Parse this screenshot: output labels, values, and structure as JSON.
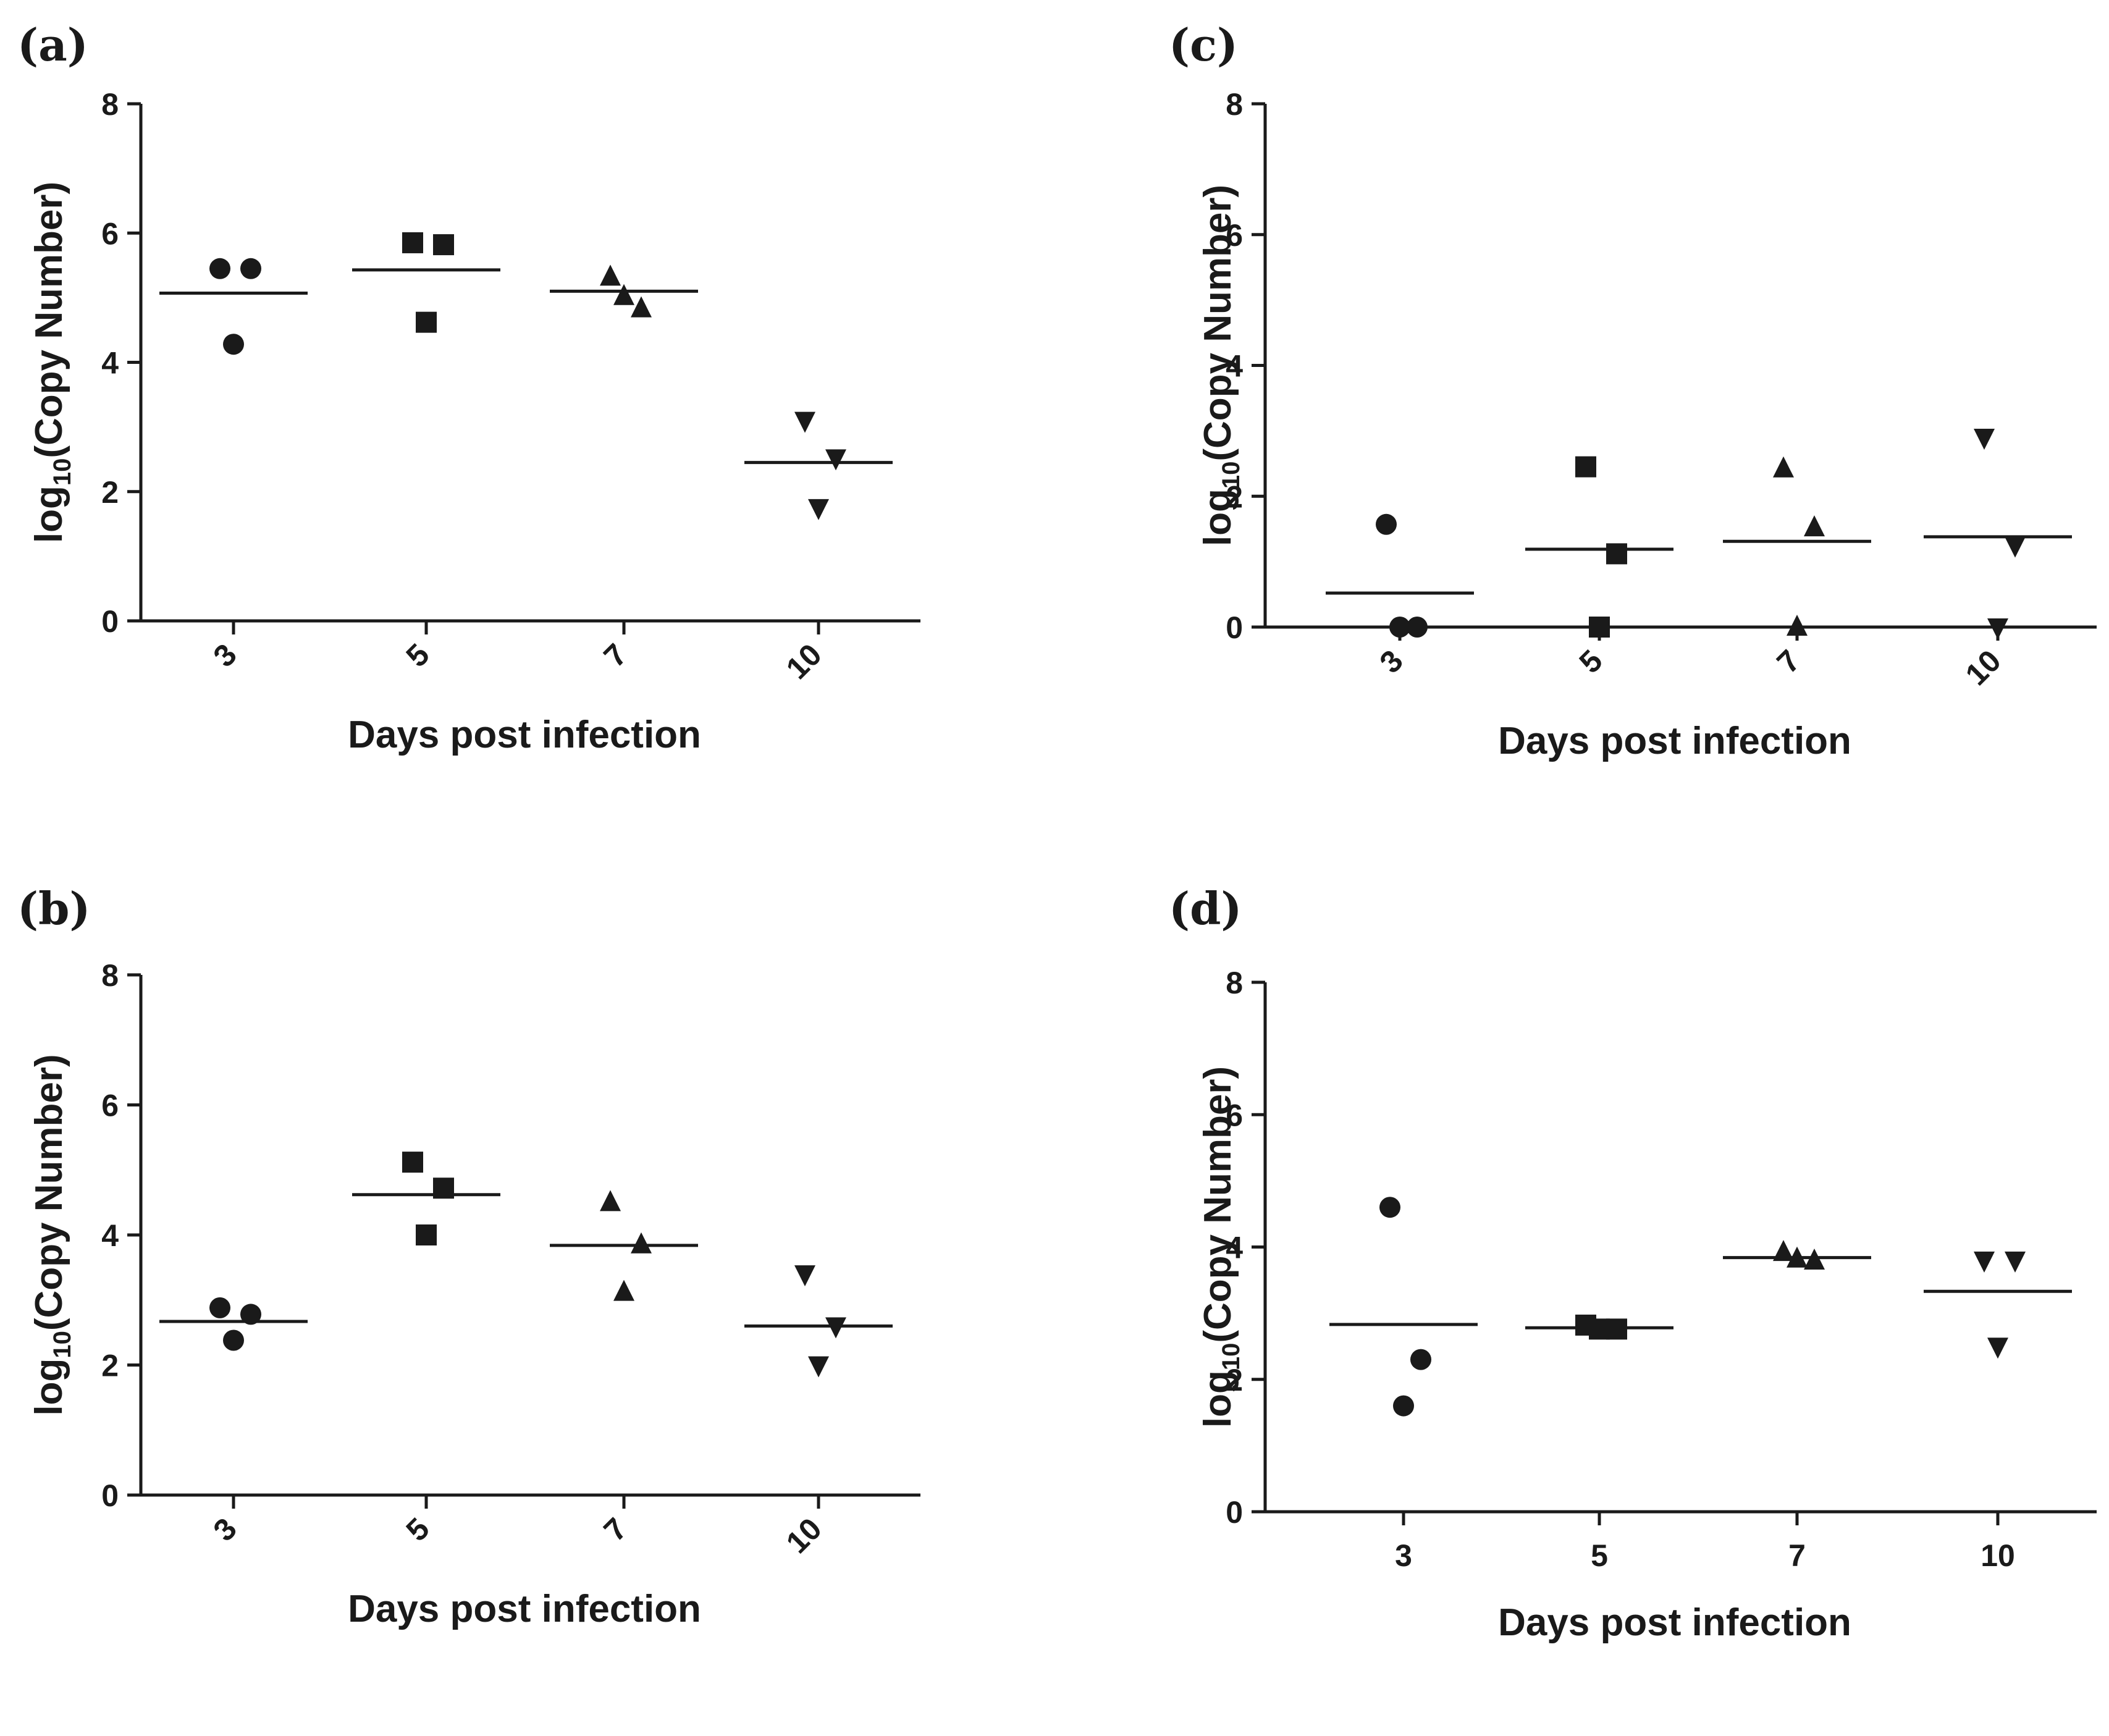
{
  "colors": {
    "ink": "#1a1a1a",
    "background": "#ffffff"
  },
  "chart_data": [
    {
      "panel": "(a)",
      "type": "scatter",
      "xlabel": "Days post infection",
      "ylabel_main": "log",
      "ylabel_sub": "10",
      "ylabel_rest": "(Copy Number)",
      "ylim": [
        0,
        8
      ],
      "yticks": [
        "0",
        "2",
        "4",
        "6",
        "8"
      ],
      "categories": [
        "3",
        "5",
        "7",
        "10"
      ],
      "xtick_rotated": true,
      "series": [
        {
          "category": "3",
          "marker": "circle",
          "points": [
            5.45,
            5.45,
            4.28
          ],
          "mean": 5.07
        },
        {
          "category": "5",
          "marker": "square",
          "points": [
            5.85,
            5.82,
            4.62
          ],
          "mean": 5.43
        },
        {
          "category": "7",
          "marker": "triangle-up",
          "points": [
            5.32,
            4.83,
            5.02
          ],
          "mean": 5.1
        },
        {
          "category": "10",
          "marker": "triangle-down",
          "points": [
            3.1,
            2.52,
            1.75
          ],
          "mean": 2.45
        }
      ]
    },
    {
      "panel": "(b)",
      "type": "scatter",
      "xlabel": "Days post infection",
      "ylabel_main": "log",
      "ylabel_sub": "10",
      "ylabel_rest": "(Copy Number)",
      "ylim": [
        0,
        8
      ],
      "yticks": [
        "0",
        "2",
        "4",
        "6",
        "8"
      ],
      "categories": [
        "3",
        "5",
        "7",
        "10"
      ],
      "xtick_rotated": true,
      "series": [
        {
          "category": "3",
          "marker": "circle",
          "points": [
            2.88,
            2.78,
            2.38
          ],
          "mean": 2.67
        },
        {
          "category": "5",
          "marker": "square",
          "points": [
            5.12,
            4.72,
            4.0
          ],
          "mean": 4.62
        },
        {
          "category": "7",
          "marker": "triangle-up",
          "points": [
            4.5,
            3.85,
            3.12
          ],
          "mean": 3.84
        },
        {
          "category": "10",
          "marker": "triangle-down",
          "points": [
            3.4,
            2.6,
            2.0
          ],
          "mean": 2.6
        }
      ]
    },
    {
      "panel": "(c)",
      "type": "scatter",
      "xlabel": "Days post infection",
      "ylabel_main": "log",
      "ylabel_sub": "10",
      "ylabel_rest": "(Copy Number)",
      "ylim": [
        0,
        8
      ],
      "yticks": [
        "0",
        "2",
        "4",
        "6",
        "8"
      ],
      "categories": [
        "3",
        "5",
        "7",
        "10"
      ],
      "xtick_rotated": true,
      "series": [
        {
          "category": "3",
          "marker": "circle",
          "points": [
            1.57,
            0.0,
            0.0
          ],
          "mean": 0.52
        },
        {
          "category": "5",
          "marker": "square",
          "points": [
            2.45,
            1.12,
            0.0
          ],
          "mean": 1.19
        },
        {
          "category": "7",
          "marker": "triangle-up",
          "points": [
            2.42,
            1.52,
            0.0
          ],
          "mean": 1.31
        },
        {
          "category": "10",
          "marker": "triangle-down",
          "points": [
            2.9,
            1.25,
            0.0
          ],
          "mean": 1.38
        }
      ]
    },
    {
      "panel": "(d)",
      "type": "scatter",
      "xlabel": "Days post infection",
      "ylabel_main": "log",
      "ylabel_sub": "10",
      "ylabel_rest": "(Copy Number)",
      "ylim": [
        0,
        8
      ],
      "yticks": [
        "0",
        "2",
        "4",
        "6",
        "8"
      ],
      "categories": [
        "3",
        "5",
        "7",
        "10"
      ],
      "xtick_rotated": false,
      "series": [
        {
          "category": "3",
          "marker": "circle",
          "points": [
            4.6,
            2.3,
            1.6
          ],
          "mean": 2.83
        },
        {
          "category": "5",
          "marker": "square",
          "points": [
            2.82,
            2.76,
            2.76
          ],
          "mean": 2.78
        },
        {
          "category": "7",
          "marker": "triangle-up",
          "points": [
            3.92,
            3.79,
            3.82
          ],
          "mean": 3.84
        },
        {
          "category": "10",
          "marker": "triangle-down",
          "points": [
            3.8,
            3.8,
            2.5
          ],
          "mean": 3.33
        }
      ]
    }
  ]
}
